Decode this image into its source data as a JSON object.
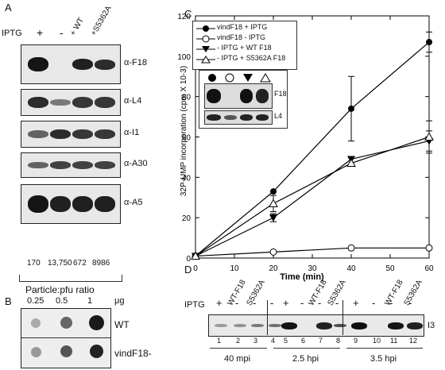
{
  "panelA": {
    "letter": "A",
    "iptg_label": "IPTG",
    "lanes": [
      "+",
      "-",
      "+ WT",
      "+S5362A"
    ],
    "blots": [
      "α-F18",
      "α-L4",
      "α-I1",
      "α-A30",
      "α-A5"
    ],
    "ratios": [
      "170",
      "13,750",
      "672",
      "8986"
    ],
    "footer": "Particle:pfu ratio"
  },
  "panelB": {
    "letter": "B",
    "amounts": [
      "0.25",
      "0.5",
      "1"
    ],
    "unit": "μg",
    "rows": [
      "WT",
      "vindF18-"
    ]
  },
  "panelC": {
    "letter": "C",
    "legend": [
      "vindF18 + IPTG",
      "vindF18 - IPTG",
      "- IPTG + WT F18",
      "- IPTG + S5362A F18"
    ],
    "inset_labels": [
      "F18",
      "L4"
    ],
    "chart_data": {
      "type": "line",
      "x": [
        0,
        20,
        40,
        60
      ],
      "xlabel": "Time (min)",
      "ylabel": "32P-UMP incorporation (cpm X 10-3)",
      "xlim": [
        0,
        60
      ],
      "ylim": [
        0,
        120
      ],
      "xticks": [
        0,
        10,
        20,
        30,
        40,
        50,
        60
      ],
      "yticks": [
        0,
        20,
        40,
        60,
        80,
        100,
        120
      ],
      "series": [
        {
          "name": "vindF18 + IPTG",
          "marker": "filled-circle",
          "values": [
            1,
            33,
            74,
            107
          ],
          "err": [
            0,
            0,
            16,
            5
          ]
        },
        {
          "name": "vindF18 - IPTG",
          "marker": "open-circle",
          "values": [
            1,
            3,
            5,
            5
          ],
          "err": [
            0,
            0,
            0,
            0
          ]
        },
        {
          "name": "- IPTG + WT F18",
          "marker": "filled-triangle-down",
          "values": [
            1,
            20,
            49,
            58
          ],
          "err": [
            0,
            2,
            0,
            5
          ]
        },
        {
          "name": "- IPTG + S5362A F18",
          "marker": "open-triangle-up",
          "values": [
            1,
            27,
            47,
            60
          ],
          "err": [
            0,
            4,
            0,
            8
          ]
        }
      ]
    }
  },
  "panelD": {
    "letter": "D",
    "iptg_label": "IPTG",
    "signs": [
      "+",
      "-",
      "-",
      "-",
      "+",
      "-",
      "-",
      "-",
      "+",
      "-",
      "-",
      "-"
    ],
    "group_labels": [
      "WT-F18",
      "S5362A"
    ],
    "lanes": [
      "1",
      "2",
      "3",
      "4",
      "5",
      "6",
      "7",
      "8",
      "9",
      "10",
      "11",
      "12"
    ],
    "protein": "I3",
    "times": [
      "40 mpi",
      "2.5 hpi",
      "3.5 hpi"
    ]
  }
}
